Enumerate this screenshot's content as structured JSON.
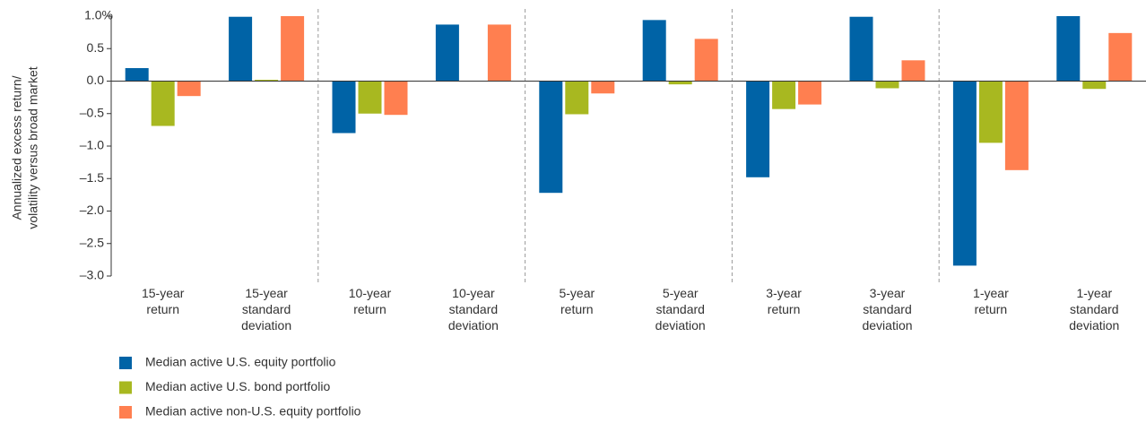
{
  "chart_data": {
    "type": "bar",
    "ylabel": [
      "Annualized excess return/",
      "volatility versus broad market"
    ],
    "categories": [
      "15-year return",
      "15-year standard deviation",
      "10-year return",
      "10-year standard deviation",
      "5-year return",
      "5-year standard deviation",
      "3-year return",
      "3-year standard deviation",
      "1-year return",
      "1-year standard deviation"
    ],
    "series": [
      {
        "name": "Median active U.S. equity portfolio",
        "color": "#0063a6",
        "values": [
          0.2,
          0.99,
          -0.8,
          0.87,
          -1.72,
          0.94,
          -1.48,
          0.99,
          -2.84,
          1.0
        ]
      },
      {
        "name": "Median active U.S. bond portfolio",
        "color": "#a8b820",
        "values": [
          -0.69,
          0.02,
          -0.5,
          0,
          -0.51,
          -0.05,
          -0.43,
          -0.11,
          -0.95,
          -0.12
        ]
      },
      {
        "name": "Median active non-U.S. equity portfolio",
        "color": "#ff7f50",
        "values": [
          -0.23,
          1.0,
          -0.52,
          0.87,
          -0.19,
          0.65,
          -0.36,
          0.32,
          -1.37,
          0.74
        ]
      }
    ],
    "ylim": [
      -3.0,
      1.0
    ],
    "yticks": [
      {
        "value": 1.0,
        "label": "1.0%"
      },
      0.5,
      {
        "value": 0,
        "label": "0.0"
      },
      {
        "value": -0.5,
        "label": "–0.5"
      },
      {
        "value": -1.0,
        "label": "–1.0"
      },
      {
        "value": -1.5,
        "label": "–1.5"
      },
      {
        "value": -2.0,
        "label": "–2.0"
      },
      {
        "value": -2.5,
        "label": "–2.5"
      },
      {
        "value": -3.0,
        "label": "–3.0"
      }
    ],
    "grid": false,
    "legend": "bottom-left"
  }
}
